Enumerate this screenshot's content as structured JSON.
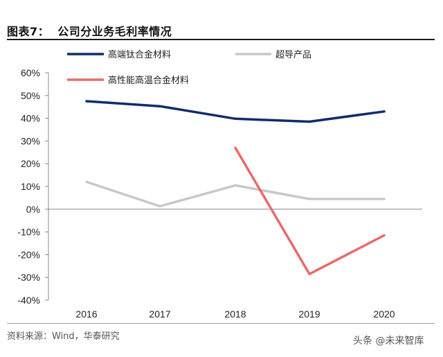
{
  "header": {
    "title": "图表7：  公司分业务毛利率情况"
  },
  "chart_data": {
    "type": "line",
    "categories": [
      "2016",
      "2017",
      "2018",
      "2019",
      "2020"
    ],
    "yticks": [
      "60%",
      "50%",
      "40%",
      "30%",
      "20%",
      "10%",
      "0%",
      "-10%",
      "-20%",
      "-30%",
      "-40%"
    ],
    "ylim": [
      -40,
      60
    ],
    "ytick_values": [
      60,
      50,
      40,
      30,
      20,
      10,
      0,
      -10,
      -20,
      -30,
      -40
    ],
    "unit": "%",
    "grid": false,
    "legend_position": "top",
    "series": [
      {
        "name": "高端钛合金材料",
        "color": "#0f2d6b",
        "values": [
          47.5,
          45.3,
          39.8,
          38.5,
          43
        ]
      },
      {
        "name": "超导产品",
        "color": "#c8c8c8",
        "values": [
          12,
          1.3,
          10.5,
          4.5,
          4.5
        ]
      },
      {
        "name": "高性能高温合金材料",
        "color": "#e96a6a",
        "values": [
          null,
          null,
          27,
          -28.5,
          -11.5
        ]
      }
    ]
  },
  "footer": {
    "source": "资料来源：Wind，华泰研究"
  },
  "watermark": {
    "text": "头条 @未来智库"
  }
}
